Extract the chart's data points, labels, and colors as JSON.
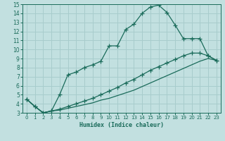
{
  "xlabel": "Humidex (Indice chaleur)",
  "bg_color": "#c2e0e0",
  "grid_color": "#a8cccc",
  "line_color": "#1a6b5a",
  "xlim": [
    -0.5,
    23.5
  ],
  "ylim": [
    3,
    15
  ],
  "xticks": [
    0,
    1,
    2,
    3,
    4,
    5,
    6,
    7,
    8,
    9,
    10,
    11,
    12,
    13,
    14,
    15,
    16,
    17,
    18,
    19,
    20,
    21,
    22,
    23
  ],
  "yticks": [
    3,
    4,
    5,
    6,
    7,
    8,
    9,
    10,
    11,
    12,
    13,
    14,
    15
  ],
  "line1_x": [
    0,
    1,
    2,
    3,
    4,
    5,
    6,
    7,
    8,
    9,
    10,
    11,
    12,
    13,
    14,
    15,
    16,
    17,
    18,
    19,
    20,
    21,
    22,
    23
  ],
  "line1_y": [
    4.5,
    3.7,
    3.0,
    3.2,
    5.0,
    7.2,
    7.5,
    8.0,
    8.3,
    8.7,
    10.4,
    10.4,
    12.2,
    12.8,
    14.0,
    14.7,
    14.9,
    14.1,
    12.7,
    11.2,
    11.2,
    11.2,
    9.3,
    8.8
  ],
  "line2_x": [
    0,
    1,
    2,
    3,
    4,
    5,
    6,
    7,
    8,
    9,
    10,
    11,
    12,
    13,
    14,
    15,
    16,
    17,
    18,
    19,
    20,
    21,
    22,
    23
  ],
  "line2_y": [
    4.5,
    3.7,
    3.0,
    3.2,
    3.4,
    3.7,
    4.0,
    4.3,
    4.6,
    5.0,
    5.4,
    5.8,
    6.3,
    6.7,
    7.2,
    7.7,
    8.1,
    8.5,
    8.9,
    9.3,
    9.6,
    9.6,
    9.3,
    8.8
  ],
  "line3_x": [
    0,
    1,
    2,
    3,
    4,
    5,
    6,
    7,
    8,
    9,
    10,
    11,
    12,
    13,
    14,
    15,
    16,
    17,
    18,
    19,
    20,
    21,
    22,
    23
  ],
  "line3_y": [
    4.5,
    3.7,
    3.0,
    3.2,
    3.3,
    3.5,
    3.7,
    3.9,
    4.1,
    4.4,
    4.6,
    4.9,
    5.2,
    5.5,
    5.9,
    6.3,
    6.7,
    7.1,
    7.5,
    7.9,
    8.3,
    8.7,
    9.0,
    8.8
  ]
}
